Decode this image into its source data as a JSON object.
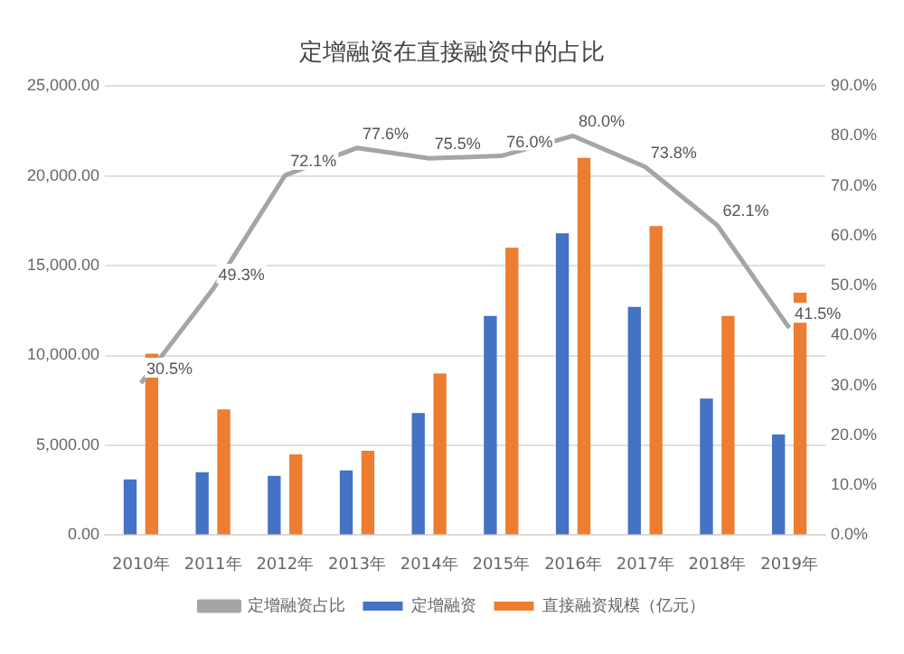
{
  "chart_data": {
    "type": "bar",
    "title": "定增融资在直接融资中的占比",
    "categories": [
      "2010年",
      "2011年",
      "2012年",
      "2013年",
      "2014年",
      "2015年",
      "2016年",
      "2017年",
      "2018年",
      "2019年"
    ],
    "series": [
      {
        "name": "定增融资",
        "color": "#4472c4",
        "values": [
          3100,
          3500,
          3300,
          3600,
          6800,
          12200,
          16800,
          12700,
          7600,
          5600
        ]
      },
      {
        "name": "直接融资规模（亿元）",
        "color": "#ed7d31",
        "values": [
          10100,
          7000,
          4500,
          4700,
          9000,
          16000,
          21000,
          17200,
          12200,
          13500
        ]
      },
      {
        "name": "定增融资占比",
        "type": "line",
        "axis": "y2",
        "color": "#a5a5a5",
        "marker": "none",
        "data_labels": true,
        "value_labels": [
          "30.5%",
          "49.3%",
          "72.1%",
          "77.6%",
          "75.5%",
          "76.0%",
          "80.0%",
          "73.8%",
          "62.1%",
          "41.5%"
        ],
        "values": [
          30.5,
          49.3,
          72.1,
          77.6,
          75.5,
          76.0,
          80.0,
          73.8,
          62.1,
          41.5
        ]
      }
    ],
    "ylim": [
      0,
      25000
    ],
    "yticks": [
      {
        "value": 0,
        "label": "0.00"
      },
      {
        "value": 5000,
        "label": "5,000.00"
      },
      {
        "value": 10000,
        "label": "10,000.00"
      },
      {
        "value": 15000,
        "label": "15,000.00"
      },
      {
        "value": 20000,
        "label": "20,000.00"
      },
      {
        "value": 25000,
        "label": "25,000.00"
      }
    ],
    "y2lim": [
      0,
      90
    ],
    "y2ticks": [
      {
        "value": 0,
        "label": "0.0%"
      },
      {
        "value": 10,
        "label": "10.0%"
      },
      {
        "value": 20,
        "label": "20.0%"
      },
      {
        "value": 30,
        "label": "30.0%"
      },
      {
        "value": 40,
        "label": "40.0%"
      },
      {
        "value": 50,
        "label": "50.0%"
      },
      {
        "value": 60,
        "label": "60.0%"
      },
      {
        "value": 70,
        "label": "70.0%"
      },
      {
        "value": 80,
        "label": "80.0%"
      },
      {
        "value": 90,
        "label": "90.0%"
      }
    ],
    "grid": "y",
    "legend": "bottom"
  }
}
